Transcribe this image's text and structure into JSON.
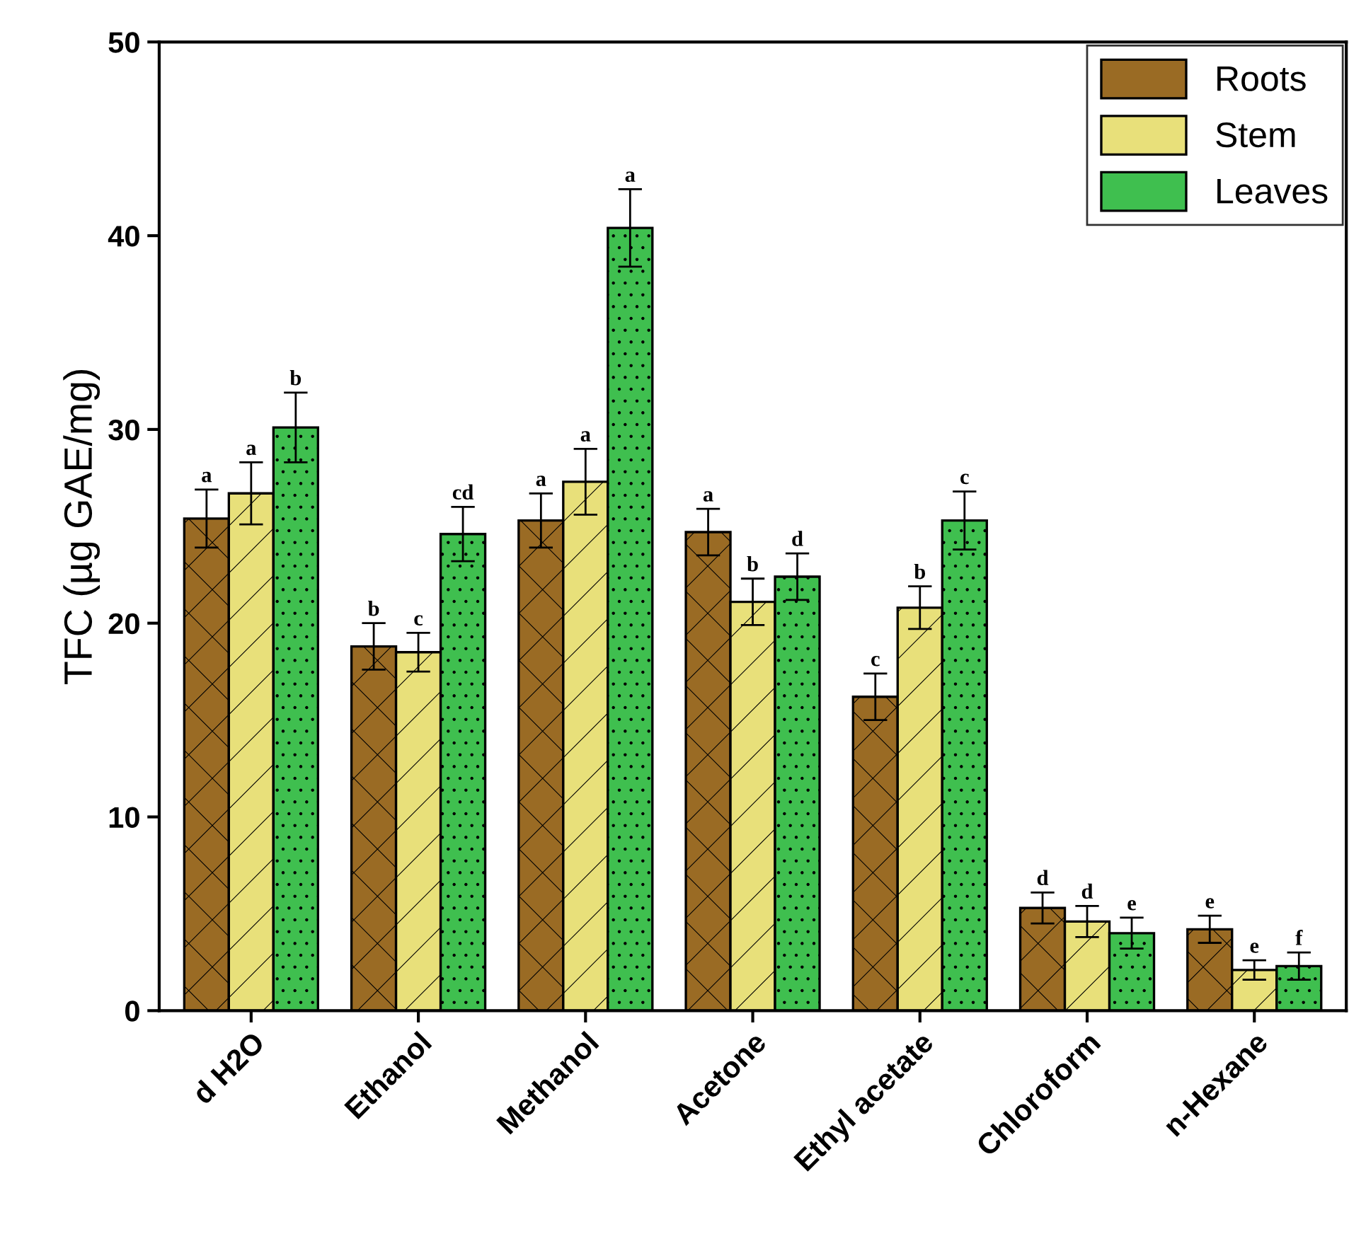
{
  "chart_data": {
    "type": "bar",
    "ylabel": "TFC (µg GAE/mg)",
    "categories": [
      "d H2O",
      "Ethanol",
      "Methanol",
      "Acetone",
      "Ethyl acetate",
      "Chloroform",
      "n-Hexane"
    ],
    "series": [
      {
        "name": "Roots",
        "color": "#9a6b24",
        "values": [
          25.4,
          18.8,
          25.3,
          24.7,
          16.2,
          5.3,
          4.2
        ],
        "errors": [
          1.5,
          1.2,
          1.4,
          1.2,
          1.2,
          0.8,
          0.7
        ]
      },
      {
        "name": "Stem",
        "color": "#e8e07a",
        "values": [
          26.7,
          18.5,
          27.3,
          21.1,
          20.8,
          4.6,
          2.1
        ],
        "errors": [
          1.6,
          1.0,
          1.7,
          1.2,
          1.1,
          0.8,
          0.5
        ]
      },
      {
        "name": "Leaves",
        "color": "#3fbf4f",
        "values": [
          30.1,
          24.6,
          40.4,
          22.4,
          25.3,
          4.0,
          2.3
        ],
        "errors": [
          1.8,
          1.4,
          2.0,
          1.2,
          1.5,
          0.8,
          0.7
        ]
      }
    ],
    "ylim": [
      0,
      50
    ],
    "yticks": [
      0,
      10,
      20,
      30,
      40,
      50
    ],
    "legend": "top right",
    "grid": false,
    "annotations": [
      "a",
      "a",
      "b",
      "b",
      "c",
      "cd",
      "a",
      "a",
      "a",
      "a",
      "b",
      "d",
      "c",
      "b",
      "c",
      "d",
      "d",
      "e",
      "e",
      "e",
      "f"
    ]
  }
}
